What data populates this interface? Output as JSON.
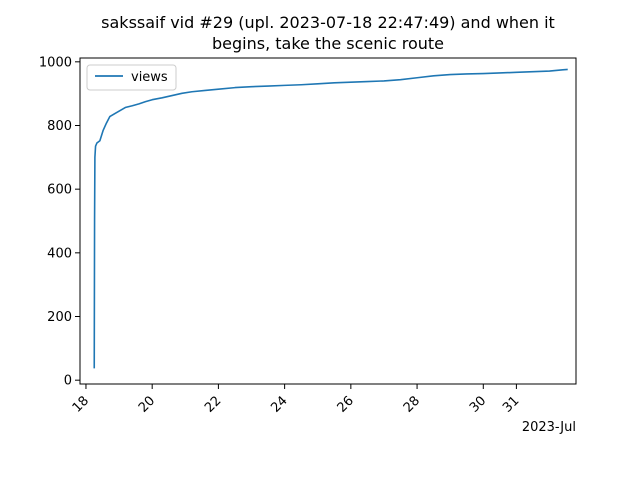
{
  "chart_data": {
    "type": "line",
    "title_lines": [
      "sakssaif vid #29 (upl. 2023-07-18 22:47:49) and when it",
      "begins, take the scenic route"
    ],
    "xlabel": "",
    "ylabel": "",
    "x_offset_label": "2023-Jul",
    "xlim": [
      17.82,
      32.8
    ],
    "ylim": [
      -12,
      1012
    ],
    "x_ticks": [
      {
        "value": 18,
        "label": "18"
      },
      {
        "value": 20,
        "label": "20"
      },
      {
        "value": 22,
        "label": "22"
      },
      {
        "value": 24,
        "label": "24"
      },
      {
        "value": 26,
        "label": "26"
      },
      {
        "value": 28,
        "label": "28"
      },
      {
        "value": 30,
        "label": "30"
      },
      {
        "value": 31,
        "label": "31"
      }
    ],
    "y_ticks": [
      {
        "value": 0,
        "label": "0"
      },
      {
        "value": 200,
        "label": "200"
      },
      {
        "value": 400,
        "label": "400"
      },
      {
        "value": 600,
        "label": "600"
      },
      {
        "value": 800,
        "label": "800"
      },
      {
        "value": 1000,
        "label": "1000"
      }
    ],
    "legend": {
      "position": "top-left",
      "entries": [
        "views"
      ]
    },
    "series": [
      {
        "name": "views",
        "color": "#1f77b4",
        "points": [
          [
            18.25,
            37
          ],
          [
            18.26,
            500
          ],
          [
            18.27,
            700
          ],
          [
            18.29,
            735
          ],
          [
            18.33,
            745
          ],
          [
            18.42,
            752
          ],
          [
            18.52,
            785
          ],
          [
            18.62,
            808
          ],
          [
            18.72,
            828
          ],
          [
            18.88,
            838
          ],
          [
            19.05,
            848
          ],
          [
            19.2,
            857
          ],
          [
            19.4,
            862
          ],
          [
            19.6,
            868
          ],
          [
            19.8,
            875
          ],
          [
            20.0,
            881
          ],
          [
            20.3,
            887
          ],
          [
            20.6,
            894
          ],
          [
            20.9,
            901
          ],
          [
            21.2,
            906
          ],
          [
            21.6,
            910
          ],
          [
            22.0,
            914
          ],
          [
            22.5,
            919
          ],
          [
            23.0,
            922
          ],
          [
            23.5,
            924
          ],
          [
            24.0,
            926
          ],
          [
            24.5,
            928
          ],
          [
            25.0,
            931
          ],
          [
            25.5,
            934
          ],
          [
            26.0,
            936
          ],
          [
            26.5,
            938
          ],
          [
            27.0,
            940
          ],
          [
            27.5,
            944
          ],
          [
            28.0,
            950
          ],
          [
            28.5,
            956
          ],
          [
            29.0,
            960
          ],
          [
            29.5,
            962
          ],
          [
            30.0,
            963
          ],
          [
            30.5,
            965
          ],
          [
            31.0,
            967
          ],
          [
            31.5,
            969
          ],
          [
            32.0,
            971
          ],
          [
            32.4,
            975
          ],
          [
            32.55,
            976
          ]
        ]
      }
    ]
  }
}
